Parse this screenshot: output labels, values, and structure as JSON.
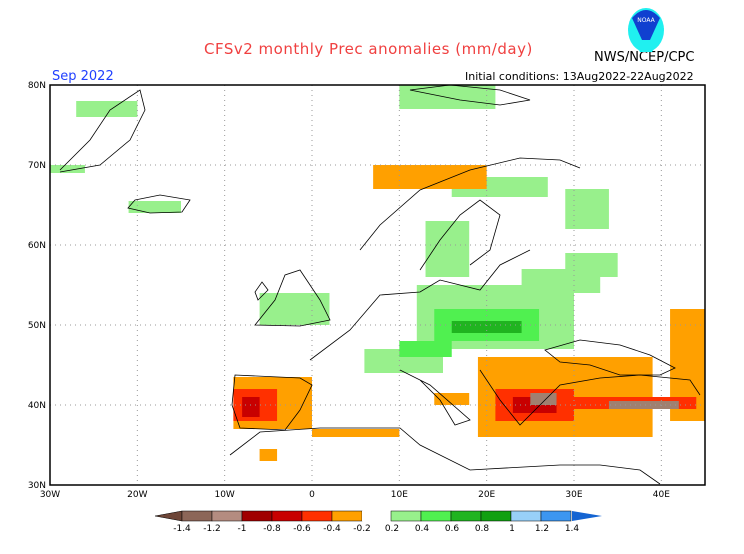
{
  "header": {
    "title": "CFSv2 monthly Prec anomalies (mm/day)",
    "agency": "NWS/NCEP/CPC",
    "month": "Sep 2022",
    "initial_conditions": "Initial conditions: 13Aug2022-22Aug2022",
    "logo_text": "NOAA"
  },
  "map": {
    "lon_range": [
      -30,
      45
    ],
    "lat_range": [
      30,
      80
    ],
    "lon_labels": [
      "30W",
      "20W",
      "10W",
      "0",
      "10E",
      "20E",
      "30E",
      "40E"
    ],
    "lat_labels": [
      "80N",
      "70N",
      "60N",
      "50N",
      "40N",
      "30N"
    ],
    "regions": [
      {
        "cat": "g1",
        "lon": [
          -27,
          -20
        ],
        "lat": [
          76,
          78
        ]
      },
      {
        "cat": "g1",
        "lon": [
          -30,
          -26
        ],
        "lat": [
          69,
          70
        ]
      },
      {
        "cat": "g1",
        "lon": [
          -21,
          -15
        ],
        "lat": [
          64,
          65.5
        ]
      },
      {
        "cat": "g1",
        "lon": [
          10,
          21
        ],
        "lat": [
          77,
          80
        ]
      },
      {
        "cat": "g1",
        "lon": [
          16,
          27
        ],
        "lat": [
          66,
          68.5
        ]
      },
      {
        "cat": "g1",
        "lon": [
          29,
          34
        ],
        "lat": [
          62,
          67
        ]
      },
      {
        "cat": "g1",
        "lon": [
          13,
          18
        ],
        "lat": [
          56,
          63
        ]
      },
      {
        "cat": "g1",
        "lon": [
          -6,
          2
        ],
        "lat": [
          50,
          54
        ]
      },
      {
        "cat": "g1",
        "lon": [
          12,
          30
        ],
        "lat": [
          47,
          55
        ]
      },
      {
        "cat": "g1",
        "lon": [
          24,
          33
        ],
        "lat": [
          54,
          57
        ]
      },
      {
        "cat": "g1",
        "lon": [
          29,
          35
        ],
        "lat": [
          56,
          59
        ]
      },
      {
        "cat": "g1",
        "lon": [
          6,
          15
        ],
        "lat": [
          44,
          47
        ]
      },
      {
        "cat": "g2",
        "lon": [
          14,
          26
        ],
        "lat": [
          48,
          52
        ]
      },
      {
        "cat": "g2",
        "lon": [
          10,
          16
        ],
        "lat": [
          46,
          48
        ]
      },
      {
        "cat": "g3",
        "lon": [
          16,
          24
        ],
        "lat": [
          49,
          50.5
        ]
      },
      {
        "cat": "o1",
        "lon": [
          -9,
          0
        ],
        "lat": [
          37,
          43.5
        ]
      },
      {
        "cat": "o1",
        "lon": [
          0,
          10
        ],
        "lat": [
          36,
          37
        ]
      },
      {
        "cat": "o1",
        "lon": [
          -6,
          -4
        ],
        "lat": [
          33,
          34.5
        ]
      },
      {
        "cat": "o1",
        "lon": [
          19,
          39
        ],
        "lat": [
          36,
          46
        ]
      },
      {
        "cat": "o1",
        "lon": [
          41,
          45
        ],
        "lat": [
          38,
          52
        ]
      },
      {
        "cat": "o1",
        "lon": [
          7,
          20
        ],
        "lat": [
          67,
          70
        ]
      },
      {
        "cat": "o1",
        "lon": [
          14,
          18
        ],
        "lat": [
          40,
          41.5
        ]
      },
      {
        "cat": "r1",
        "lon": [
          -9,
          -4
        ],
        "lat": [
          38,
          42
        ]
      },
      {
        "cat": "r1",
        "lon": [
          21,
          30
        ],
        "lat": [
          38,
          42
        ]
      },
      {
        "cat": "r1",
        "lon": [
          30,
          44
        ],
        "lat": [
          39.5,
          41
        ]
      },
      {
        "cat": "r2",
        "lon": [
          -8,
          -6
        ],
        "lat": [
          38.5,
          41
        ]
      },
      {
        "cat": "r2",
        "lon": [
          23,
          28
        ],
        "lat": [
          39,
          41
        ]
      },
      {
        "cat": "b1",
        "lon": [
          25,
          28
        ],
        "lat": [
          40,
          41.5
        ]
      },
      {
        "cat": "b1",
        "lon": [
          34,
          42
        ],
        "lat": [
          39.5,
          40.5
        ]
      }
    ]
  },
  "colorbar": {
    "colors": [
      "#6e4638",
      "#8c6658",
      "#b48c80",
      "#a00000",
      "#c80000",
      "#ff3000",
      "#ffa000",
      "#ffffff",
      "#98f08c",
      "#50f050",
      "#20b420",
      "#10a010",
      "#98d0f8",
      "#3c96f0",
      "#1464d2"
    ],
    "labels": [
      "-1.4",
      "-1.2",
      "-1",
      "-0.8",
      "-0.6",
      "-0.4",
      "-0.2",
      "0.2",
      "0.4",
      "0.6",
      "0.8",
      "1",
      "1.2",
      "1.4"
    ]
  },
  "categories": {
    "g1": "#98f08c",
    "g2": "#50f050",
    "g3": "#20b420",
    "o1": "#ffa000",
    "r1": "#ff3000",
    "r2": "#c80000",
    "b1": "#a08070"
  }
}
